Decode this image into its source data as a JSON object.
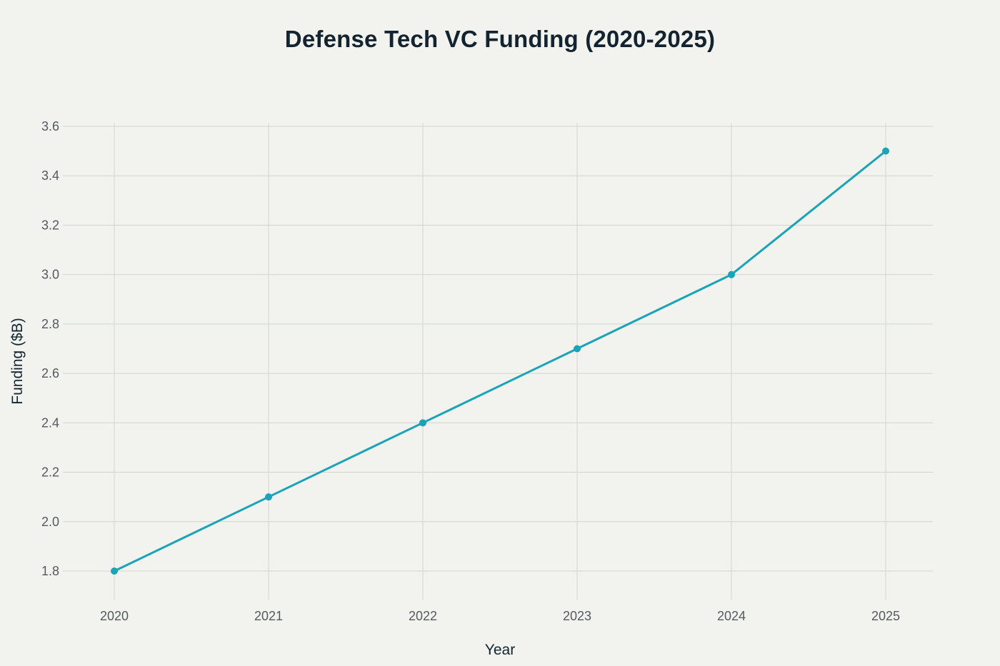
{
  "chart_data": {
    "type": "line",
    "title": "Defense Tech VC Funding (2020-2025)",
    "xlabel": "Year",
    "ylabel": "Funding ($B)",
    "x": [
      "2020",
      "2021",
      "2022",
      "2023",
      "2024",
      "2025"
    ],
    "series": [
      {
        "values": [
          1.8,
          2.1,
          2.4,
          2.7,
          3.0,
          3.5
        ],
        "color": "#1ba3b8"
      }
    ],
    "yticks": [
      1.8,
      2.0,
      2.2,
      2.4,
      2.6,
      2.8,
      3.0,
      3.2,
      3.4,
      3.6
    ],
    "ylim": [
      1.7,
      3.61
    ],
    "grid": true,
    "legend": "none"
  }
}
